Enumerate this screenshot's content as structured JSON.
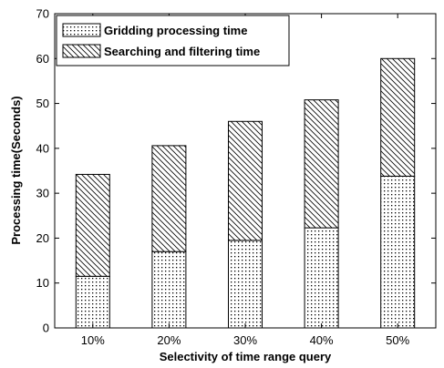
{
  "chart_data": {
    "type": "bar",
    "stacked": true,
    "title": "",
    "xlabel": "Selectivity of time range query",
    "ylabel": "Processing time(Seconds)",
    "categories": [
      "10%",
      "20%",
      "30%",
      "40%",
      "50%"
    ],
    "ylim": [
      0,
      70
    ],
    "yticks": [
      0,
      10,
      20,
      30,
      40,
      50,
      60,
      70
    ],
    "grid": false,
    "legend_position": "top-left",
    "series": [
      {
        "name": "Gridding processing time",
        "values": [
          11.5,
          17.0,
          19.5,
          22.3,
          33.8
        ],
        "pattern": "dots"
      },
      {
        "name": "Searching and filtering time",
        "values": [
          22.7,
          23.6,
          26.5,
          28.5,
          26.2
        ],
        "pattern": "diagonal-hatch"
      }
    ]
  }
}
